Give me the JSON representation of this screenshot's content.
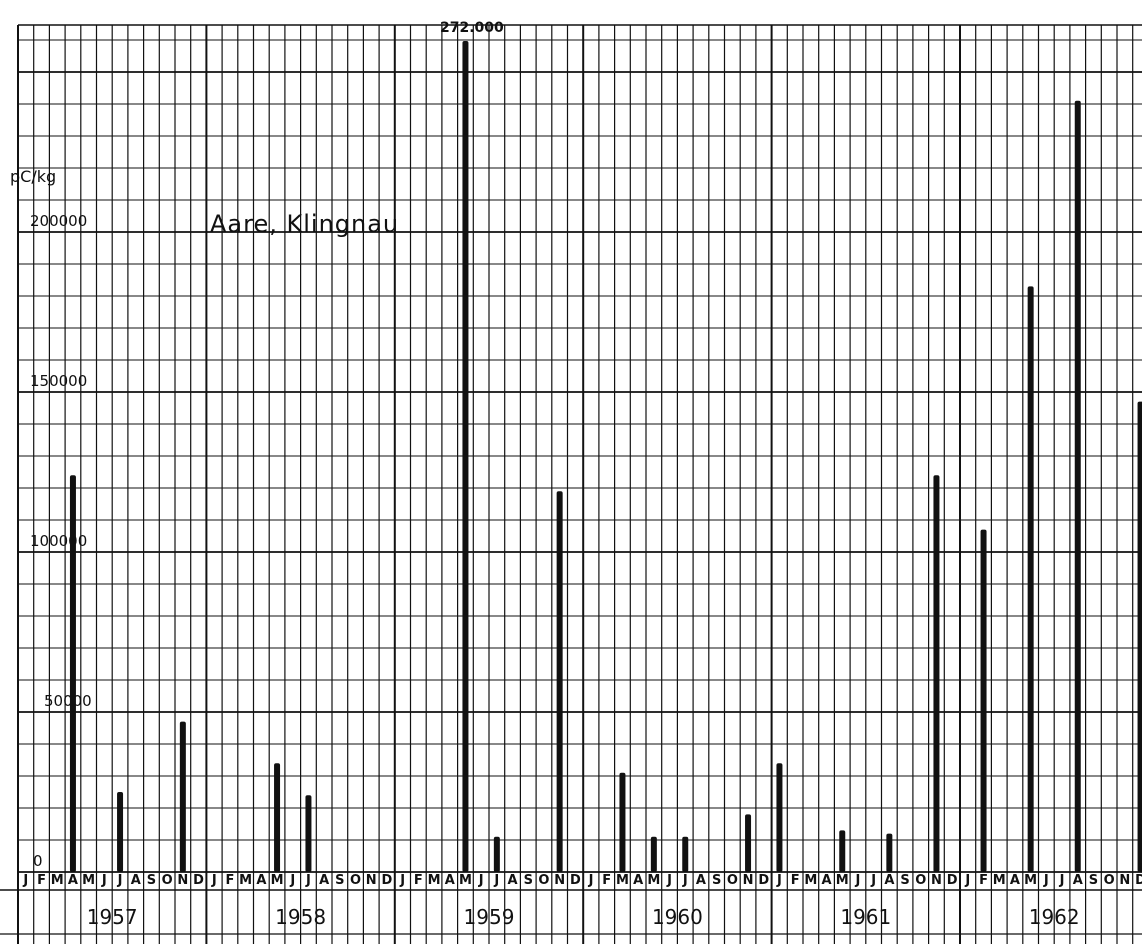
{
  "chart_data": {
    "type": "bar",
    "title": "Aare, Klingnau",
    "ylabel": "pC/kg",
    "ylim": [
      0,
      260000
    ],
    "yticks": [
      "0",
      "50000",
      "100000",
      "150000",
      "200000"
    ],
    "month_labels": [
      "J",
      "F",
      "M",
      "A",
      "M",
      "J",
      "J",
      "A",
      "S",
      "O",
      "N",
      "D"
    ],
    "years": [
      "1957",
      "1958",
      "1959",
      "1960",
      "1961",
      "1962"
    ],
    "grid": true,
    "clipped_annotation": "272.000",
    "series": [
      {
        "values": [
          {
            "x": "1957-04",
            "y": 124000
          },
          {
            "x": "1957-07",
            "y": 25000
          },
          {
            "x": "1957-11",
            "y": 47000
          },
          {
            "x": "1958-05",
            "y": 34000
          },
          {
            "x": "1958-07",
            "y": 24000
          },
          {
            "x": "1959-05",
            "y": 272000
          },
          {
            "x": "1959-07",
            "y": 11000
          },
          {
            "x": "1959-11",
            "y": 119000
          },
          {
            "x": "1960-03",
            "y": 31000
          },
          {
            "x": "1960-05",
            "y": 11000
          },
          {
            "x": "1960-07",
            "y": 11000
          },
          {
            "x": "1960-11",
            "y": 18000
          },
          {
            "x": "1961-01",
            "y": 34000
          },
          {
            "x": "1961-05",
            "y": 13000
          },
          {
            "x": "1961-08",
            "y": 12000
          },
          {
            "x": "1961-11",
            "y": 124000
          },
          {
            "x": "1962-02",
            "y": 107000
          },
          {
            "x": "1962-05",
            "y": 183000
          },
          {
            "x": "1962-08",
            "y": 241000
          },
          {
            "x": "1962-12",
            "y": 147000
          }
        ]
      }
    ]
  }
}
